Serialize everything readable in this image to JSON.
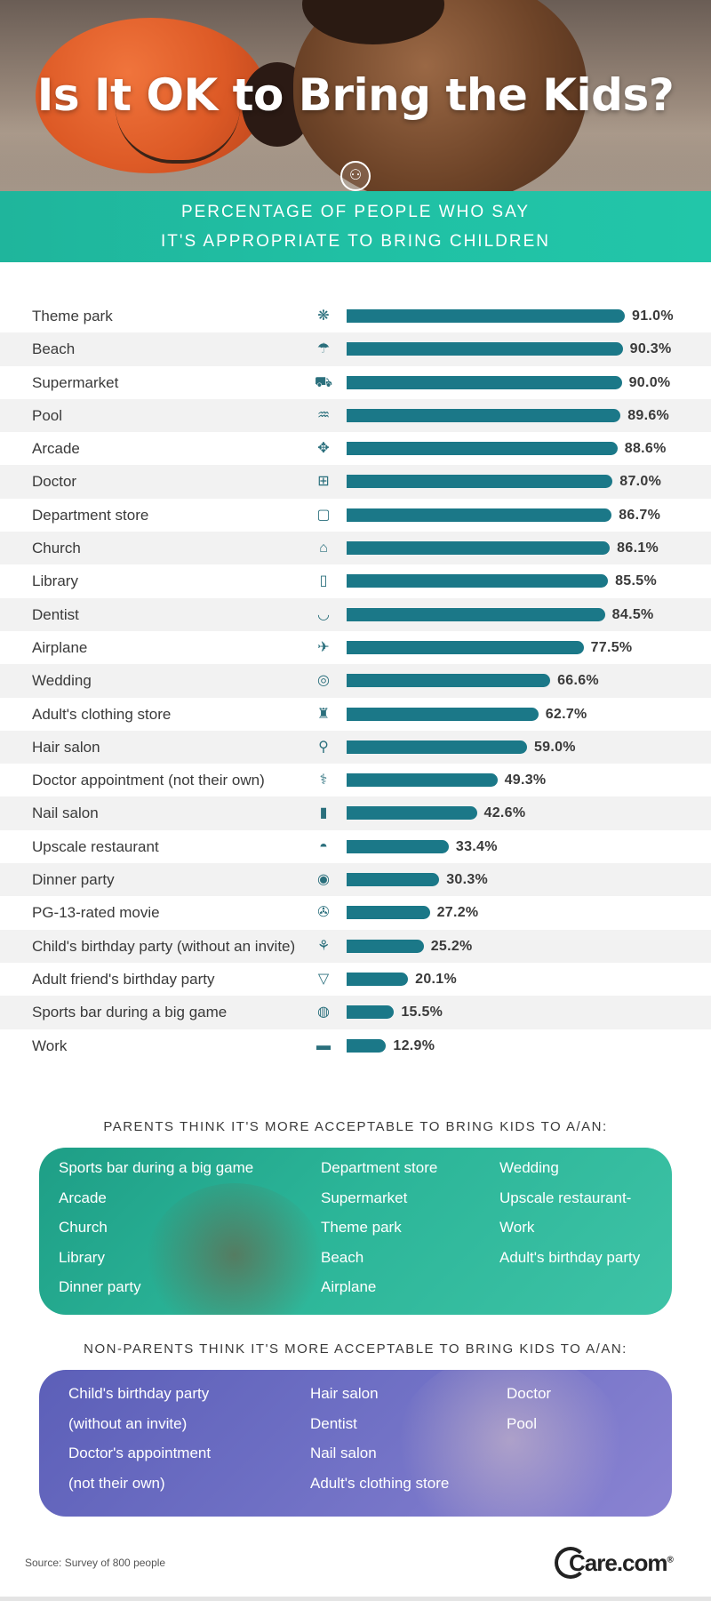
{
  "header": {
    "title": "Is It OK to Bring the Kids?",
    "subtitle_line1": "PERCENTAGE OF PEOPLE WHO SAY",
    "subtitle_line2": "IT'S APPROPRIATE TO BRING CHILDREN",
    "badge_icon": "baby-face-icon"
  },
  "colors": {
    "bar": "#1b7888",
    "band": "#20c0a4",
    "parents_box": "#2bb598",
    "nonparents_box": "#6e6fc4"
  },
  "chart_data": {
    "type": "bar",
    "orientation": "horizontal",
    "title": "PERCENTAGE OF PEOPLE WHO SAY IT'S APPROPRIATE TO BRING CHILDREN",
    "xlim": [
      0,
      100
    ],
    "unit": "%",
    "categories": [
      "Theme park",
      "Beach",
      "Supermarket",
      "Pool",
      "Arcade",
      "Doctor",
      "Department store",
      "Church",
      "Library",
      "Dentist",
      "Airplane",
      "Wedding",
      "Adult's clothing store",
      "Hair salon",
      "Doctor appointment (not their own)",
      "Nail salon",
      "Upscale restaurant",
      "Dinner party",
      "PG-13-rated movie",
      "Child's birthday party (without an invite)",
      "Adult friend's birthday party",
      "Sports bar during a big game",
      "Work"
    ],
    "values": [
      91.0,
      90.3,
      90.0,
      89.6,
      88.6,
      87.0,
      86.7,
      86.1,
      85.5,
      84.5,
      77.5,
      66.6,
      62.7,
      59.0,
      49.3,
      42.6,
      33.4,
      30.3,
      27.2,
      25.2,
      20.1,
      15.5,
      12.9
    ],
    "value_labels": [
      "91.0%",
      "90.3%",
      "90.0%",
      "89.6%",
      "88.6%",
      "87.0%",
      "86.7%",
      "86.1%",
      "85.5%",
      "84.5%",
      "77.5%",
      "66.6%",
      "62.7%",
      "59.0%",
      "49.3%",
      "42.6%",
      "33.4%",
      "30.3%",
      "27.2%",
      "25.2%",
      "20.1%",
      "15.5%",
      "12.9%"
    ],
    "icons": [
      "ferris-wheel-icon",
      "beach-umbrella-icon",
      "shopping-cart-icon",
      "pool-ladder-icon",
      "arcade-joystick-icon",
      "medical-cross-icon",
      "shopping-bag-icon",
      "church-icon",
      "library-book-icon",
      "tooth-icon",
      "airplane-icon",
      "wedding-rings-icon",
      "jacket-icon",
      "hair-dryer-icon",
      "stethoscope-icon",
      "nail-polish-icon",
      "cloche-icon",
      "dinner-plate-icon",
      "film-reel-icon",
      "balloons-icon",
      "cocktail-icon",
      "football-icon",
      "briefcase-icon"
    ],
    "icon_glyphs": [
      "❋",
      "☂",
      "⛟",
      "♒",
      "✥",
      "⊞",
      "▢",
      "⌂",
      "▯",
      "◡",
      "✈",
      "◎",
      "♜",
      "⚲",
      "⚕",
      "▮",
      "◓",
      "◉",
      "✇",
      "⚘",
      "▽",
      "◍",
      "▬"
    ]
  },
  "parents": {
    "heading": "PARENTS THINK IT'S MORE ACCEPTABLE TO BRING KIDS TO A/AN:",
    "col1": [
      "Sports bar during a big game",
      "Arcade",
      "Church",
      "Library",
      "Dinner party"
    ],
    "col2": [
      "Department store",
      "Supermarket",
      "Theme park",
      "Beach",
      "Airplane"
    ],
    "col3": [
      "Wedding",
      "Upscale restaurant-",
      "Work",
      "Adult's birthday party"
    ]
  },
  "nonparents": {
    "heading": "NON-PARENTS THINK IT'S MORE ACCEPTABLE TO BRING KIDS TO A/AN:",
    "col1": [
      "Child's birthday party",
      "(without an invite)",
      "Doctor's appointment",
      "(not their own)"
    ],
    "col2": [
      "Hair salon",
      "Dentist",
      "Nail salon",
      "Adult's clothing store"
    ],
    "col3": [
      "Doctor",
      "Pool"
    ]
  },
  "footer": {
    "source": "Source: Survey of 800 people",
    "logo": "Care.com",
    "logo_trademark": "®"
  }
}
